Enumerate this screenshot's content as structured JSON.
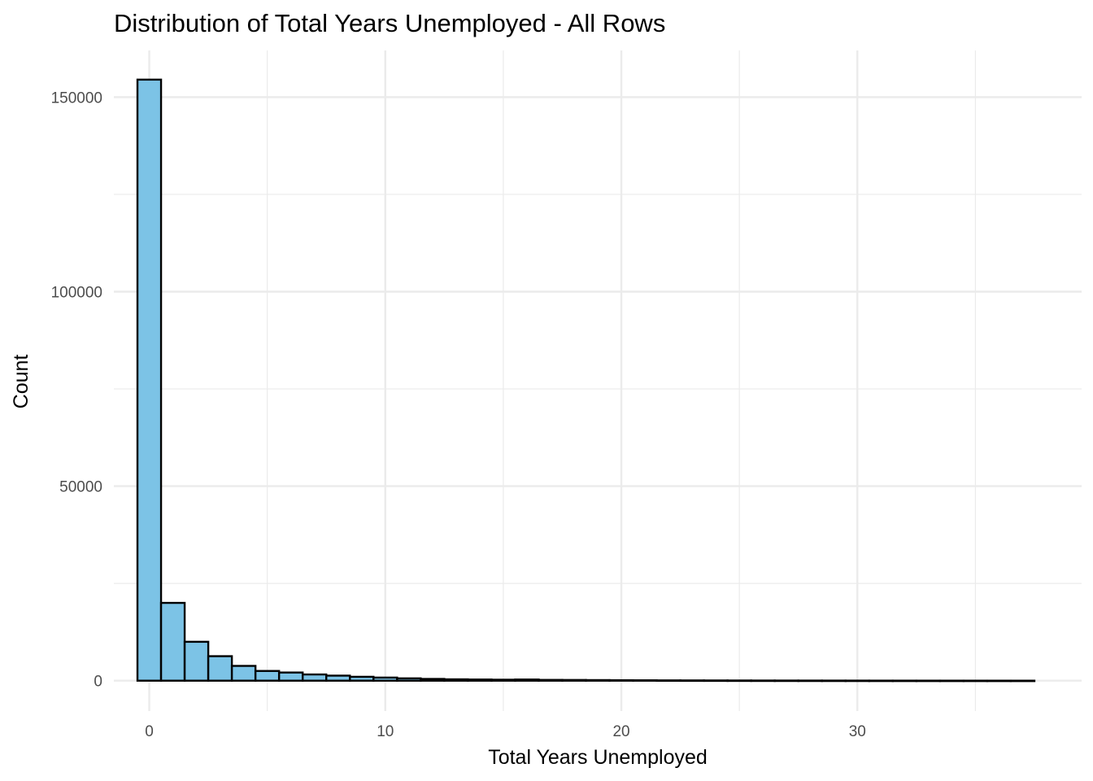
{
  "chart_data": {
    "type": "bar",
    "title": "Distribution of Total Years Unemployed - All Rows",
    "xlabel": "Total Years Unemployed",
    "ylabel": "Count",
    "x_ticks": [
      0,
      10,
      20,
      30
    ],
    "y_ticks": [
      0,
      50000,
      100000,
      150000
    ],
    "xlim": [
      -1.5,
      39.5
    ],
    "ylim": [
      -7800,
      162000
    ],
    "grid": true,
    "bar_fill": "#7cc3e6",
    "bar_outline": "#000000",
    "bin_width": 1,
    "bin_centers": [
      0,
      1,
      2,
      3,
      4,
      5,
      6,
      7,
      8,
      9,
      10,
      11,
      12,
      13,
      14,
      15,
      16,
      17,
      18,
      19,
      20,
      21,
      22,
      23,
      24,
      25,
      26,
      27,
      28,
      29,
      30,
      31,
      32,
      33,
      34,
      35,
      36,
      37
    ],
    "counts": [
      154500,
      20000,
      10000,
      6300,
      3800,
      2500,
      2100,
      1600,
      1300,
      1000,
      800,
      600,
      450,
      350,
      300,
      250,
      300,
      200,
      180,
      150,
      120,
      100,
      80,
      70,
      60,
      50,
      40,
      35,
      30,
      25,
      20,
      15,
      12,
      10,
      8,
      6,
      4,
      3
    ]
  }
}
